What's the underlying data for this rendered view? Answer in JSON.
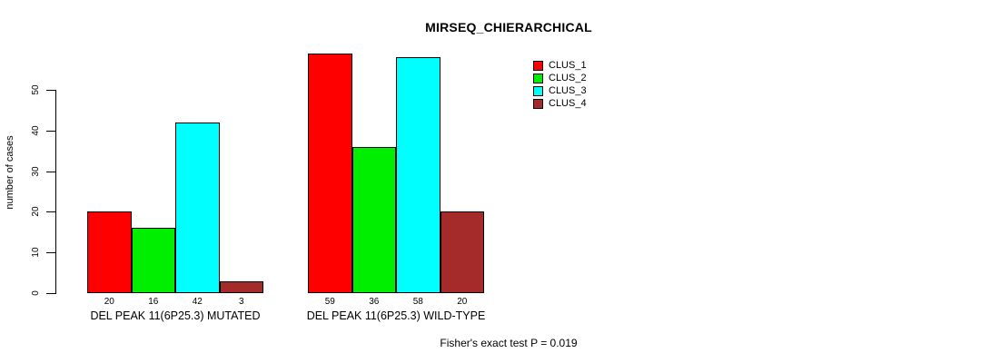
{
  "title": "MIRSEQ_CHIERARCHICAL",
  "footer": "Fisher's exact test P = 0.019",
  "chart_data": {
    "type": "bar",
    "title": "MIRSEQ_CHIERARCHICAL",
    "xlabel": "",
    "ylabel": "number of cases",
    "categories": [
      "DEL PEAK 11(6P25.3) MUTATED",
      "DEL PEAK 11(6P25.3) WILD-TYPE"
    ],
    "series": [
      {
        "name": "CLUS_1",
        "color": "#FF0000",
        "values": [
          20,
          59
        ]
      },
      {
        "name": "CLUS_2",
        "color": "#00EE00",
        "values": [
          16,
          36
        ]
      },
      {
        "name": "CLUS_3",
        "color": "#00FFFF",
        "values": [
          42,
          58
        ]
      },
      {
        "name": "CLUS_4",
        "color": "#A52A2A",
        "values": [
          3,
          20
        ]
      }
    ],
    "bar_value_labels": [
      [
        20,
        16,
        42,
        3
      ],
      [
        59,
        36,
        58,
        20
      ]
    ],
    "yticks": [
      0,
      10,
      20,
      30,
      40,
      50
    ],
    "ylim": [
      0,
      59
    ],
    "grid": false,
    "legend_position": "top-right",
    "annotation": "Fisher's exact test P = 0.019"
  }
}
